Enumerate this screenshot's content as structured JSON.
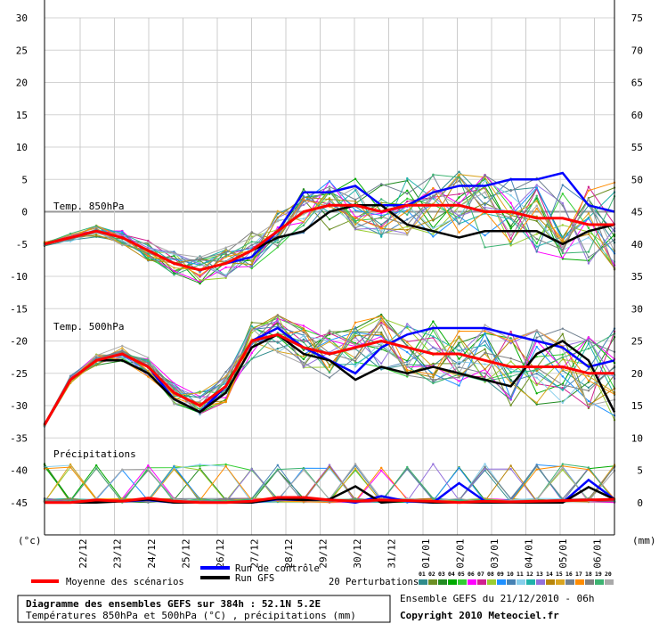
{
  "chart_data": {
    "type": "line",
    "title": "Diagramme des ensembles GEFS sur 384h : 52.1N 5.2E",
    "subtitle": "Températures 850hPa et 500hPa (°C) , précipitations (mm)",
    "source": "Ensemble GEFS du 21/12/2010 - 06h",
    "copyright": "Copyright 2010 Meteociel.fr",
    "left_axis": {
      "unit": "(°c)",
      "ticks": [
        "30",
        "25",
        "20",
        "15",
        "10",
        "5",
        "0",
        "-5",
        "-10",
        "-15",
        "-20",
        "-25",
        "-30",
        "-35",
        "-40",
        "-45"
      ],
      "range": [
        -50,
        30
      ]
    },
    "right_axis": {
      "unit": "(mm)",
      "ticks": [
        "75",
        "70",
        "65",
        "60",
        "55",
        "50",
        "45",
        "40",
        "35",
        "30",
        "25",
        "20",
        "15",
        "10",
        "5",
        "0"
      ]
    },
    "x_labels": [
      "22/12",
      "23/12",
      "24/12",
      "25/12",
      "26/12",
      "27/12",
      "28/12",
      "29/12",
      "30/12",
      "31/12",
      "01/01",
      "02/01",
      "03/01",
      "04/01",
      "05/01",
      "06/01"
    ],
    "panels": {
      "t850": {
        "label": "Temp. 850hPa",
        "mean": [
          -5,
          -4,
          -3,
          -4,
          -6,
          -8,
          -9,
          -8,
          -6,
          -3,
          0,
          1,
          1,
          0,
          1,
          1,
          1,
          0,
          0,
          -1,
          -1,
          -2,
          -2
        ],
        "gfs": [
          -5,
          -4,
          -3,
          -4,
          -6,
          -8,
          -9,
          -8,
          -6,
          -4,
          -3,
          0,
          1,
          1,
          -2,
          -3,
          -4,
          -3,
          -3,
          -3,
          -5,
          -3,
          -2
        ],
        "control": [
          -5,
          -4,
          -3,
          -4,
          -6,
          -8,
          -9,
          -8,
          -7,
          -3,
          3,
          3,
          4,
          1,
          1,
          3,
          4,
          4,
          5,
          5,
          6,
          1,
          0
        ]
      },
      "t500": {
        "label": "Temp. 500hPa",
        "mean": [
          -33,
          -26,
          -23,
          -22,
          -24,
          -28,
          -30,
          -27,
          -20,
          -19,
          -21,
          -22,
          -21,
          -20,
          -21,
          -22,
          -22,
          -23,
          -24,
          -24,
          -24,
          -25,
          -25
        ],
        "gfs": [
          -33,
          -26,
          -23,
          -23,
          -25,
          -29,
          -31,
          -28,
          -21,
          -19,
          -22,
          -23,
          -26,
          -24,
          -25,
          -24,
          -25,
          -26,
          -27,
          -22,
          -20,
          -23,
          -31
        ],
        "control": [
          -33,
          -26,
          -23,
          -22,
          -24,
          -29,
          -31,
          -27,
          -20,
          -18,
          -21,
          -23,
          -25,
          -21,
          -19,
          -18,
          -18,
          -18,
          -19,
          -20,
          -21,
          -24,
          -23
        ]
      },
      "precip": {
        "label": "Précipitations",
        "mean": [
          -45,
          -45,
          -44.6,
          -44.8,
          -44.3,
          -44.8,
          -45,
          -45,
          -44.8,
          -44.2,
          -44.2,
          -44.6,
          -44.8,
          -44.6,
          -44.7,
          -44.8,
          -45,
          -44.8,
          -44.9,
          -44.8,
          -44.7,
          -44.6,
          -44.5
        ],
        "gfs": [
          -45,
          -45,
          -45,
          -44.8,
          -44.5,
          -45,
          -45,
          -45,
          -45,
          -44.4,
          -44.6,
          -44.5,
          -42.5,
          -45,
          -44.7,
          -45,
          -45,
          -45,
          -45,
          -45,
          -45,
          -42.6,
          -44.5
        ],
        "control": [
          -45,
          -45,
          -44.8,
          -44.8,
          -44.6,
          -45,
          -45,
          -45,
          -45,
          -44.5,
          -44.6,
          -44.5,
          -45,
          -44,
          -44.8,
          -45,
          -42,
          -44.8,
          -45,
          -45,
          -45,
          -41.5,
          -44.5
        ]
      }
    },
    "legend": {
      "mean": "Moyenne des scénarios",
      "control": "Run de contrôle",
      "gfs": "Run GFS",
      "perturbations": "20 Perturbations",
      "pert_numbers": [
        "01",
        "02",
        "03",
        "04",
        "05",
        "06",
        "07",
        "08",
        "09",
        "10",
        "11",
        "12",
        "13",
        "14",
        "15",
        "16",
        "17",
        "18",
        "19",
        "20"
      ]
    },
    "colors": {
      "mean": "#ff0000",
      "control": "#0000ff",
      "gfs": "#000000",
      "perturbations": [
        "#2e8b8b",
        "#6b8e23",
        "#228b22",
        "#00aa00",
        "#32cd32",
        "#ff00ff",
        "#d02090",
        "#9acd32",
        "#1e90ff",
        "#4682b4",
        "#87ceeb",
        "#20b2aa",
        "#9370db",
        "#b8860b",
        "#daa520",
        "#708090",
        "#ff8c00",
        "#808080",
        "#3cb371",
        "#a9a9a9"
      ]
    }
  }
}
